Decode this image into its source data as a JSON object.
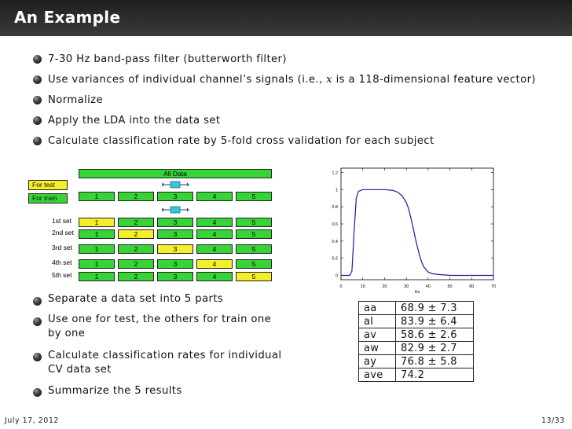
{
  "slide": {
    "title": "An Example",
    "top_bullets": [
      "7-30 Hz band-pass filter (butterworth filter)",
      "Use variances of individual channel’s signals (i.e., x is a 118-dimensional feature vector)",
      "Normalize",
      "Apply the LDA into the data set",
      "Calculate classification rate by 5-fold cross validation for each subject"
    ],
    "bottom_bullets": [
      "Separate a data set into 5 parts",
      "Use one for test, the others for train one",
      "by one",
      "Calculate classification rates for individual",
      "CV data set",
      "Summarize the 5 results"
    ]
  },
  "diagram": {
    "all_data": "All Data",
    "for_test": "For test",
    "for_train": "For train",
    "parts": [
      "1",
      "2",
      "3",
      "4",
      "5"
    ],
    "sets": [
      {
        "label": "1st set",
        "test": 1
      },
      {
        "label": "2nd set",
        "test": 2
      },
      {
        "label": "3rd set",
        "test": 3
      },
      {
        "label": "4th set",
        "test": 4
      },
      {
        "label": "5th set",
        "test": 5
      }
    ]
  },
  "chart_data": {
    "type": "line",
    "title": "",
    "xlabel": "Hz",
    "ylabel": "",
    "xlim": [
      0,
      70
    ],
    "ylim": [
      -0.05,
      1.25
    ],
    "xticks": [
      "0",
      "10",
      "20",
      "30",
      "40",
      "50",
      "60",
      "70"
    ],
    "yticks": [
      "0",
      "0.2",
      "0.4",
      "0.6",
      "0.8",
      "1",
      "1.2"
    ],
    "series": [
      {
        "color": "#1a1aa8",
        "x": [
          0,
          4,
          5,
          6,
          7,
          8,
          10,
          15,
          20,
          24,
          26,
          28,
          30,
          31,
          32,
          33,
          34,
          35,
          36,
          37,
          38,
          40,
          42,
          45,
          50,
          60,
          70
        ],
        "y": [
          0.0,
          0.0,
          0.05,
          0.5,
          0.9,
          0.98,
          1.0,
          1.0,
          1.0,
          0.99,
          0.97,
          0.93,
          0.85,
          0.78,
          0.68,
          0.57,
          0.45,
          0.34,
          0.24,
          0.16,
          0.1,
          0.04,
          0.02,
          0.01,
          0.0,
          0.0,
          0.0
        ]
      }
    ]
  },
  "results": [
    {
      "subject": "aa",
      "value": "68.9 ± 7.3"
    },
    {
      "subject": "al",
      "value": "83.9 ± 6.4"
    },
    {
      "subject": "av",
      "value": "58.6 ± 2.6"
    },
    {
      "subject": "aw",
      "value": "82.9 ± 2.7"
    },
    {
      "subject": "ay",
      "value": "76.8 ± 5.8"
    },
    {
      "subject": "ave",
      "value": "74.2"
    }
  ],
  "footer": {
    "date": "July 17, 2012",
    "page": "13/33"
  }
}
